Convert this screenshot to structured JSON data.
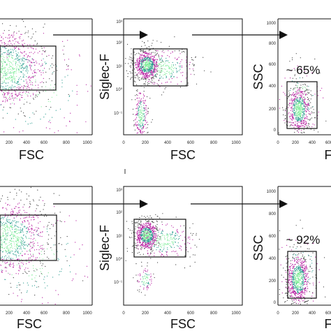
{
  "chart_data": [
    {
      "type": "scatter",
      "xlabel": "FSC",
      "ylabel": "",
      "xticks": [
        "200",
        "400",
        "600",
        "800",
        "1000"
      ],
      "yticks": [],
      "gate": {
        "x": [
          0,
          720
        ],
        "y": [
          0,
          0
        ]
      },
      "annotation": ""
    },
    {
      "type": "scatter",
      "xlabel": "FSC",
      "ylabel": "Siglec-F",
      "xticks": [
        "0",
        "200",
        "400",
        "600",
        "800",
        "1000"
      ],
      "yticks": [
        "10⁻¹",
        "10⁰",
        "10¹",
        "10²",
        "10³"
      ],
      "gate": {
        "x": [
          80,
          550
        ],
        "y": [
          1.3,
          2.0
        ]
      },
      "annotation": ""
    },
    {
      "type": "scatter",
      "xlabel": "F",
      "ylabel": "SSC",
      "xticks": [
        "0",
        "200",
        "400",
        "600"
      ],
      "yticks": [
        "0",
        "200",
        "400",
        "600",
        "800",
        "1000"
      ],
      "gate": {
        "x": [
          90,
          330
        ],
        "y": [
          100,
          460
        ]
      },
      "annotation": "~ 65%"
    },
    {
      "type": "scatter",
      "xlabel": "FSC",
      "ylabel": "",
      "xticks": [
        "200",
        "400",
        "600",
        "800",
        "1000"
      ],
      "yticks": [],
      "gate": {
        "x": [
          0,
          720
        ],
        "y": [
          0,
          0
        ]
      },
      "annotation": ""
    },
    {
      "type": "scatter",
      "xlabel": "FSC",
      "ylabel": "Siglec-F",
      "xticks": [
        "0",
        "200",
        "400",
        "600",
        "800",
        "1000"
      ],
      "yticks": [
        "10⁻¹",
        "10⁰",
        "10¹",
        "10²",
        "10³"
      ],
      "gate": {
        "x": [
          80,
          550
        ],
        "y": [
          1.2,
          2.2
        ]
      },
      "annotation": ""
    },
    {
      "type": "scatter",
      "xlabel": "F",
      "ylabel": "SSC",
      "xticks": [
        "0",
        "200",
        "400",
        "600"
      ],
      "yticks": [
        "0",
        "200",
        "400",
        "600",
        "800",
        "1000"
      ],
      "gate": {
        "x": [
          90,
          330
        ],
        "y": [
          60,
          400
        ]
      },
      "annotation": "~ 92%"
    }
  ],
  "colors": {
    "axis": "#111111",
    "arrow": "#111111",
    "density_low": "#3a3a3a",
    "density_mid": "#b5179e",
    "density_high": "#2a9d8f",
    "density_peak": "#80ed99"
  }
}
